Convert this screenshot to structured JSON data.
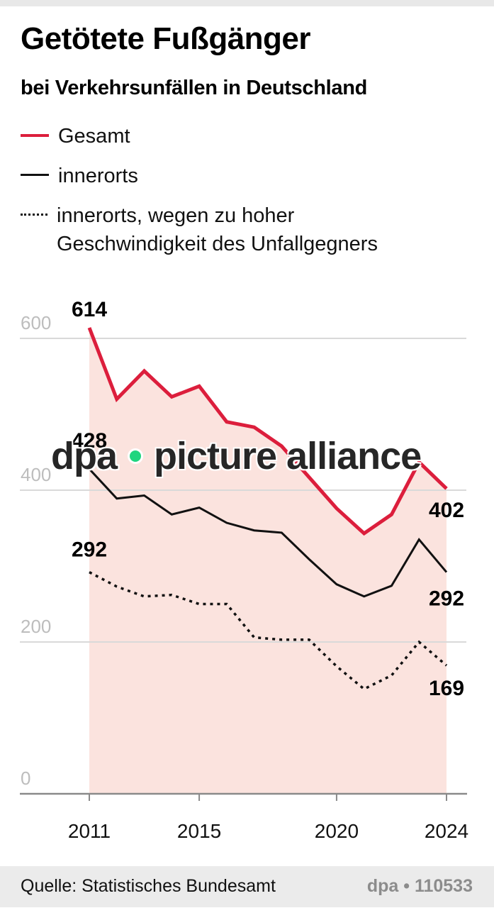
{
  "header": {
    "title": "Getötete Fußgänger",
    "subtitle": "bei Verkehrsunfällen in Deutschland"
  },
  "legend": [
    {
      "label": "Gesamt",
      "style": "solid-red"
    },
    {
      "label": "innerorts",
      "style": "solid-black"
    },
    {
      "label_line1": "innerorts, wegen zu hoher",
      "label_line2": "Geschwindigkeit des Unfallgegners",
      "style": "dotted-black"
    }
  ],
  "watermark": {
    "left": "dpa",
    "right": "picture alliance"
  },
  "footer": {
    "source": "Quelle: Statistisches Bundesamt",
    "id": "dpa • 110533"
  },
  "colors": {
    "gesamt": "#dc1e3c",
    "innerorts": "#111111",
    "area_fill": "#fbe3de",
    "grid": "#d9d9d9",
    "axis": "#8a8a8a",
    "tick_label": "#bdbdbd",
    "watermark_dot": "#1fd57f"
  },
  "chart_data": {
    "type": "line",
    "title": "Getötete Fußgänger",
    "subtitle": "bei Verkehrsunfällen in Deutschland",
    "xlabel": "",
    "ylabel": "",
    "x": [
      2011,
      2012,
      2013,
      2014,
      2015,
      2016,
      2017,
      2018,
      2019,
      2020,
      2021,
      2022,
      2023,
      2024
    ],
    "x_ticks": [
      "2011",
      "2015",
      "2020",
      "2024"
    ],
    "y_ticks": [
      "0",
      "200",
      "400",
      "600"
    ],
    "ylim": [
      0,
      600
    ],
    "xlim": [
      2011,
      2024
    ],
    "grid": true,
    "legend_position": "top-left",
    "series": [
      {
        "name": "Gesamt",
        "values": [
          614,
          520,
          557,
          523,
          537,
          490,
          483,
          458,
          417,
          376,
          343,
          368,
          437,
          402
        ],
        "area": true
      },
      {
        "name": "innerorts",
        "values": [
          428,
          389,
          393,
          368,
          377,
          357,
          347,
          344,
          309,
          276,
          260,
          274,
          335,
          292
        ]
      },
      {
        "name": "innerorts, wegen zu hoher Geschwindigkeit des Unfallgegners",
        "values": [
          292,
          273,
          260,
          262,
          250,
          250,
          206,
          203,
          203,
          168,
          138,
          156,
          200,
          169
        ],
        "dashed": true
      }
    ],
    "annotations": [
      {
        "text": "614",
        "series": 0,
        "x": 2011
      },
      {
        "text": "428",
        "series": 1,
        "x": 2011
      },
      {
        "text": "292",
        "series": 2,
        "x": 2011
      },
      {
        "text": "402",
        "series": 0,
        "x": 2024
      },
      {
        "text": "292",
        "series": 1,
        "x": 2024
      },
      {
        "text": "169",
        "series": 2,
        "x": 2024
      }
    ]
  }
}
